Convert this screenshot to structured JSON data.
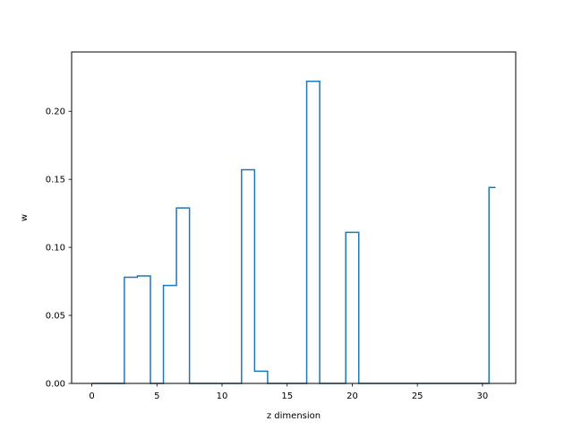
{
  "chart_data": {
    "type": "line",
    "drawstyle": "steps-mid",
    "xlabel": "z dimension",
    "ylabel": "w",
    "xlim": [
      -1.55,
      32.55
    ],
    "ylim": [
      0,
      0.2436
    ],
    "xticks": [
      0,
      5,
      10,
      15,
      20,
      25,
      30
    ],
    "yticks": [
      0.0,
      0.05,
      0.1,
      0.15,
      0.2
    ],
    "xtick_labels": [
      "0",
      "5",
      "10",
      "15",
      "20",
      "25",
      "30"
    ],
    "ytick_labels": [
      "0.00",
      "0.05",
      "0.10",
      "0.15",
      "0.20"
    ],
    "grid": false,
    "line_color": "#1f77b4",
    "x": [
      0,
      1,
      2,
      3,
      4,
      5,
      6,
      7,
      8,
      9,
      10,
      11,
      12,
      13,
      14,
      15,
      16,
      17,
      18,
      19,
      20,
      21,
      22,
      23,
      24,
      25,
      26,
      27,
      28,
      29,
      30,
      31
    ],
    "values": [
      0,
      0,
      0,
      0.078,
      0.079,
      0,
      0.072,
      0.129,
      0,
      0,
      0,
      0,
      0.157,
      0.009,
      0,
      0,
      0,
      0.222,
      0,
      0,
      0.111,
      0,
      0,
      0,
      0,
      0,
      0,
      0,
      0,
      0,
      0,
      0.144
    ]
  }
}
